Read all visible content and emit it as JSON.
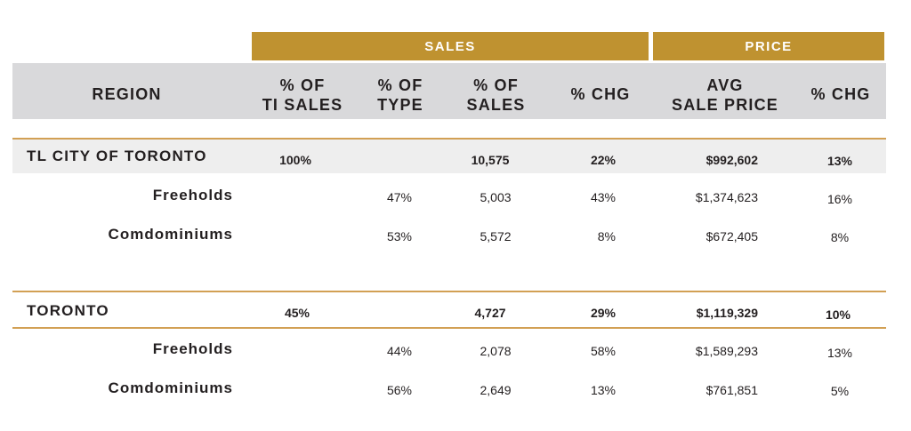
{
  "groups": {
    "sales": "SALES",
    "price": "PRICE"
  },
  "headers": {
    "region": "REGION",
    "pct_ti_sales": "% OF\nTI SALES",
    "pct_type": "% OF\nTYPE",
    "pct_sales": "% OF\nSALES",
    "pct_chg": "% CHG",
    "avg_sale_price": "AVG\nSALE PRICE",
    "price_pct_chg": "% CHG"
  },
  "sections": [
    {
      "region": "TL CITY OF TORONTO",
      "pct_ti_sales": "100%",
      "pct_sales": "10,575",
      "pct_chg": "22%",
      "avg_sale_price": "$992,602",
      "price_pct_chg": "13%",
      "rows": [
        {
          "label": "Freeholds",
          "pct_type": "47%",
          "sales": "5,003",
          "pct_chg": "43%",
          "avg_price": "$1,374,623",
          "price_chg": "16%"
        },
        {
          "label": "Comdominiums",
          "pct_type": "53%",
          "sales": "5,572",
          "pct_chg": "8%",
          "avg_price": "$672,405",
          "price_chg": "8%"
        }
      ]
    },
    {
      "region": "TORONTO",
      "pct_ti_sales": "45%",
      "pct_sales": "4,727",
      "pct_chg": "29%",
      "avg_sale_price": "$1,119,329",
      "price_pct_chg": "10%",
      "rows": [
        {
          "label": "Freeholds",
          "pct_type": "44%",
          "sales": "2,078",
          "pct_chg": "58%",
          "avg_price": "$1,589,293",
          "price_chg": "13%"
        },
        {
          "label": "Comdominiums",
          "pct_type": "56%",
          "sales": "2,649",
          "pct_chg": "13%",
          "avg_price": "$761,851",
          "price_chg": "5%"
        }
      ]
    }
  ]
}
